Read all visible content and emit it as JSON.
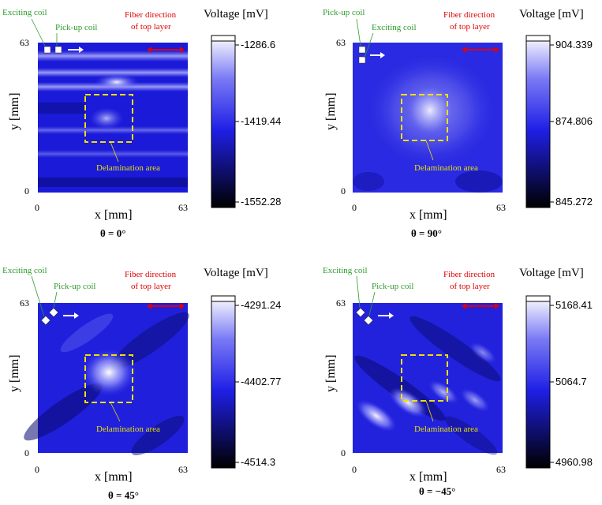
{
  "chart_data": [
    {
      "type": "heatmap",
      "title": "θ = 0°",
      "theta_value": "0°",
      "xlabel": "x [mm]",
      "ylabel": "y [mm]",
      "x_ticks": [
        "0",
        "63"
      ],
      "y_ticks": [
        "0",
        "63"
      ],
      "xlim": [
        0,
        63
      ],
      "ylim": [
        0,
        63
      ],
      "colorbar": {
        "title": "Voltage [mV]",
        "max_label": "-1286.6",
        "mid_label": "-1419.44",
        "min_label": "-1552.28",
        "max": -1286.6,
        "mid": -1419.44,
        "min": -1552.28
      },
      "annotations": {
        "exciting_coil": "Exciting coil",
        "pickup_coil": "Pick-up coil",
        "fiber_direction_line1": "Fiber direction",
        "fiber_direction_line2": "of top layer",
        "delamination": "Delamination area"
      },
      "coil_orientation": "square",
      "coil_order": "exciting-left"
    },
    {
      "type": "heatmap",
      "title": "θ = 90°",
      "theta_value": "90°",
      "xlabel": "x [mm]",
      "ylabel": "y [mm]",
      "x_ticks": [
        "0",
        "63"
      ],
      "y_ticks": [
        "0",
        "63"
      ],
      "xlim": [
        0,
        63
      ],
      "ylim": [
        0,
        63
      ],
      "colorbar": {
        "title": "Voltage [mV]",
        "max_label": "904.339",
        "mid_label": "874.806",
        "min_label": "845.272",
        "max": 904.339,
        "mid": 874.806,
        "min": 845.272
      },
      "annotations": {
        "exciting_coil": "Exciting coil",
        "pickup_coil": "Pick-up coil",
        "fiber_direction_line1": "Fiber direction",
        "fiber_direction_line2": "of top layer",
        "delamination": "Delamination area"
      },
      "coil_orientation": "square-vertical",
      "coil_order": "pickup-left"
    },
    {
      "type": "heatmap",
      "title": "θ = 45°",
      "theta_value": "45°",
      "xlabel": "x [mm]",
      "ylabel": "y [mm]",
      "x_ticks": [
        "0",
        "63"
      ],
      "y_ticks": [
        "0",
        "63"
      ],
      "xlim": [
        0,
        63
      ],
      "ylim": [
        0,
        63
      ],
      "colorbar": {
        "title": "Voltage [mV]",
        "max_label": "-4291.24",
        "mid_label": "-4402.77",
        "min_label": "-4514.3",
        "max": -4291.24,
        "mid": -4402.77,
        "min": -4514.3
      },
      "annotations": {
        "exciting_coil": "Exciting coil",
        "pickup_coil": "Pick-up coil",
        "fiber_direction_line1": "Fiber direction",
        "fiber_direction_line2": "of top layer",
        "delamination": "Delamination area"
      },
      "coil_orientation": "diamond",
      "coil_order": "exciting-left"
    },
    {
      "type": "heatmap",
      "title": "θ = −45°",
      "theta_value": "−45°",
      "xlabel": "x [mm]",
      "ylabel": "y [mm]",
      "x_ticks": [
        "0",
        "63"
      ],
      "y_ticks": [
        "0",
        "63"
      ],
      "xlim": [
        0,
        63
      ],
      "ylim": [
        0,
        63
      ],
      "colorbar": {
        "title": "Voltage [mV]",
        "max_label": "5168.41",
        "mid_label": "5064.7",
        "min_label": "4960.98",
        "max": 5168.41,
        "mid": 5064.7,
        "min": 4960.98
      },
      "annotations": {
        "exciting_coil": "Exciting coil",
        "pickup_coil": "Pick-up coil",
        "fiber_direction_line1": "Fiber direction",
        "fiber_direction_line2": "of top layer",
        "delamination": "Delamination area"
      },
      "coil_orientation": "diamond",
      "coil_order": "exciting-left"
    }
  ],
  "colors": {
    "colormap_low": "#000000",
    "colormap_mid": "#1f1fe6",
    "colormap_high": "#ffffff",
    "delamination_box": "#f0e000",
    "fiber_arrow": "#e00000",
    "coil_label": "#2e9b2e"
  }
}
